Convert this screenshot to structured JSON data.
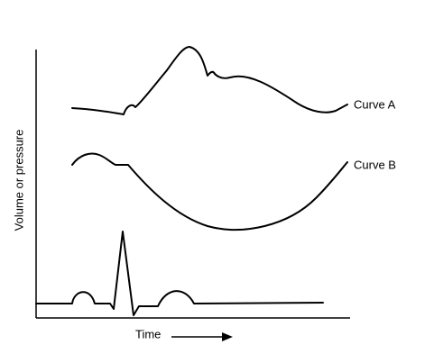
{
  "diagram": {
    "y_axis_label": "Volume or pressure",
    "x_axis_label": "Time",
    "curves": [
      {
        "label": "Curve A"
      },
      {
        "label": "Curve B"
      }
    ]
  }
}
